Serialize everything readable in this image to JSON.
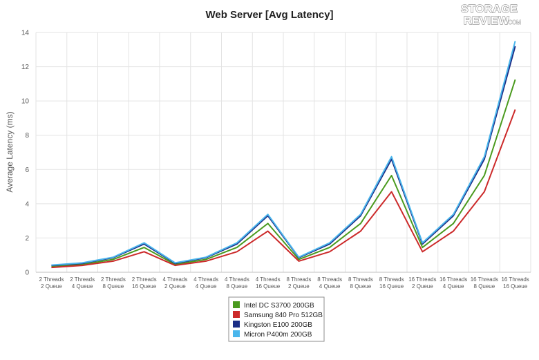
{
  "logo": {
    "line1": "STORAGE",
    "line2": "REVIEW",
    "suffix": ".COM"
  },
  "colors": {
    "intel": "#4a9a1e",
    "samsung": "#cc2a2a",
    "kingston": "#1b2d86",
    "micron": "#4ab6ec",
    "grid": "#e3e3e3",
    "axis": "#bfbfbf"
  },
  "chart_data": {
    "type": "line",
    "title": "Web Server [Avg Latency]",
    "xlabel": "",
    "ylabel": "Average Latency (ms)",
    "ylim": [
      0,
      14
    ],
    "yticks": [
      0,
      2,
      4,
      6,
      8,
      10,
      12,
      14
    ],
    "grid": true,
    "legend_position": "bottom-center",
    "categories": [
      [
        "2 Threads",
        "2 Queue"
      ],
      [
        "2 Threads",
        "4 Queue"
      ],
      [
        "2 Threads",
        "8 Queue"
      ],
      [
        "2 Threads",
        "16 Queue"
      ],
      [
        "4 Threads",
        "2 Queue"
      ],
      [
        "4 Threads",
        "4 Queue"
      ],
      [
        "4 Threads",
        "8 Queue"
      ],
      [
        "4 Threads",
        "16 Queue"
      ],
      [
        "8 Threads",
        "2 Queue"
      ],
      [
        "8 Threads",
        "4 Queue"
      ],
      [
        "8 Threads",
        "8 Queue"
      ],
      [
        "8 Threads",
        "16 Queue"
      ],
      [
        "16 Threads",
        "2 Queue"
      ],
      [
        "16 Threads",
        "4 Queue"
      ],
      [
        "16 Threads",
        "8 Queue"
      ],
      [
        "16 Threads",
        "16 Queue"
      ]
    ],
    "series": [
      {
        "name": "Intel DC S3700 200GB",
        "color_key": "intel",
        "values": [
          0.35,
          0.45,
          0.75,
          1.45,
          0.45,
          0.75,
          1.45,
          2.85,
          0.75,
          1.45,
          2.85,
          5.65,
          1.45,
          2.85,
          5.65,
          11.25
        ]
      },
      {
        "name": "Samsung 840 Pro 512GB",
        "color_key": "samsung",
        "values": [
          0.28,
          0.4,
          0.65,
          1.2,
          0.4,
          0.65,
          1.2,
          2.4,
          0.65,
          1.2,
          2.4,
          4.7,
          1.2,
          2.4,
          4.7,
          9.5
        ]
      },
      {
        "name": "Kingston E100 200GB",
        "color_key": "kingston",
        "values": [
          0.4,
          0.52,
          0.85,
          1.65,
          0.52,
          0.85,
          1.65,
          3.3,
          0.85,
          1.65,
          3.3,
          6.6,
          1.65,
          3.3,
          6.6,
          13.2
        ]
      },
      {
        "name": "Micron P400m 200GB",
        "color_key": "micron",
        "values": [
          0.42,
          0.55,
          0.88,
          1.72,
          0.55,
          0.88,
          1.72,
          3.38,
          0.88,
          1.72,
          3.38,
          6.75,
          1.72,
          3.38,
          6.75,
          13.5
        ]
      }
    ]
  }
}
